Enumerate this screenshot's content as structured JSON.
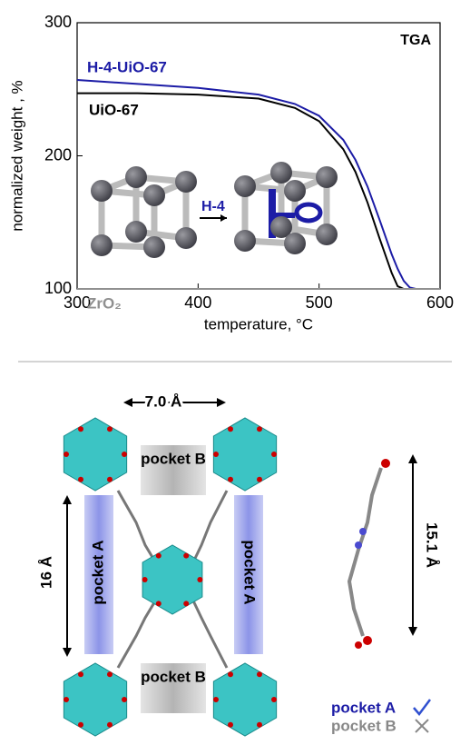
{
  "chart_data": {
    "type": "line",
    "annotation": "TGA",
    "inset_label": "H-4",
    "x_label": "temperature, °C",
    "y_label": "normalized weight , %",
    "x": [
      300,
      350,
      400,
      450,
      480,
      500,
      520,
      530,
      540,
      550,
      560,
      565,
      570,
      575,
      580,
      600
    ],
    "series": [
      {
        "name": "H-4-UiO-67",
        "color": "#1c1ca6",
        "values": [
          257,
          254,
          251,
          246,
          239,
          230,
          212,
          197,
          177,
          152,
          126,
          115,
          106,
          101,
          100,
          100
        ]
      },
      {
        "name": "UiO-67",
        "color": "#000000",
        "values": [
          247,
          247,
          246,
          243,
          236,
          226,
          205,
          188,
          165,
          138,
          112,
          102,
          100,
          100,
          100,
          100
        ]
      },
      {
        "name": "ZrO₂",
        "color": "#909090",
        "values": [
          100,
          100,
          100,
          100,
          100,
          100,
          100,
          100,
          100,
          100,
          100,
          100,
          100,
          100,
          100,
          100
        ]
      }
    ],
    "xlim": [
      300,
      600
    ],
    "xticks": [
      300,
      400,
      500,
      600
    ],
    "ylim": [
      100,
      300
    ],
    "yticks": [
      100,
      200,
      300
    ]
  },
  "diagram": {
    "spacing_top": "7.0 Å",
    "spacing_side": "16 Å",
    "linker_length": "15.1 Å",
    "pocket_b_top": "pocket B",
    "pocket_b_bottom": "pocket B",
    "pocket_a_left": "pocket A",
    "pocket_a_right": "pocket A",
    "legend_a": "pocket A",
    "legend_b": "pocket B"
  }
}
